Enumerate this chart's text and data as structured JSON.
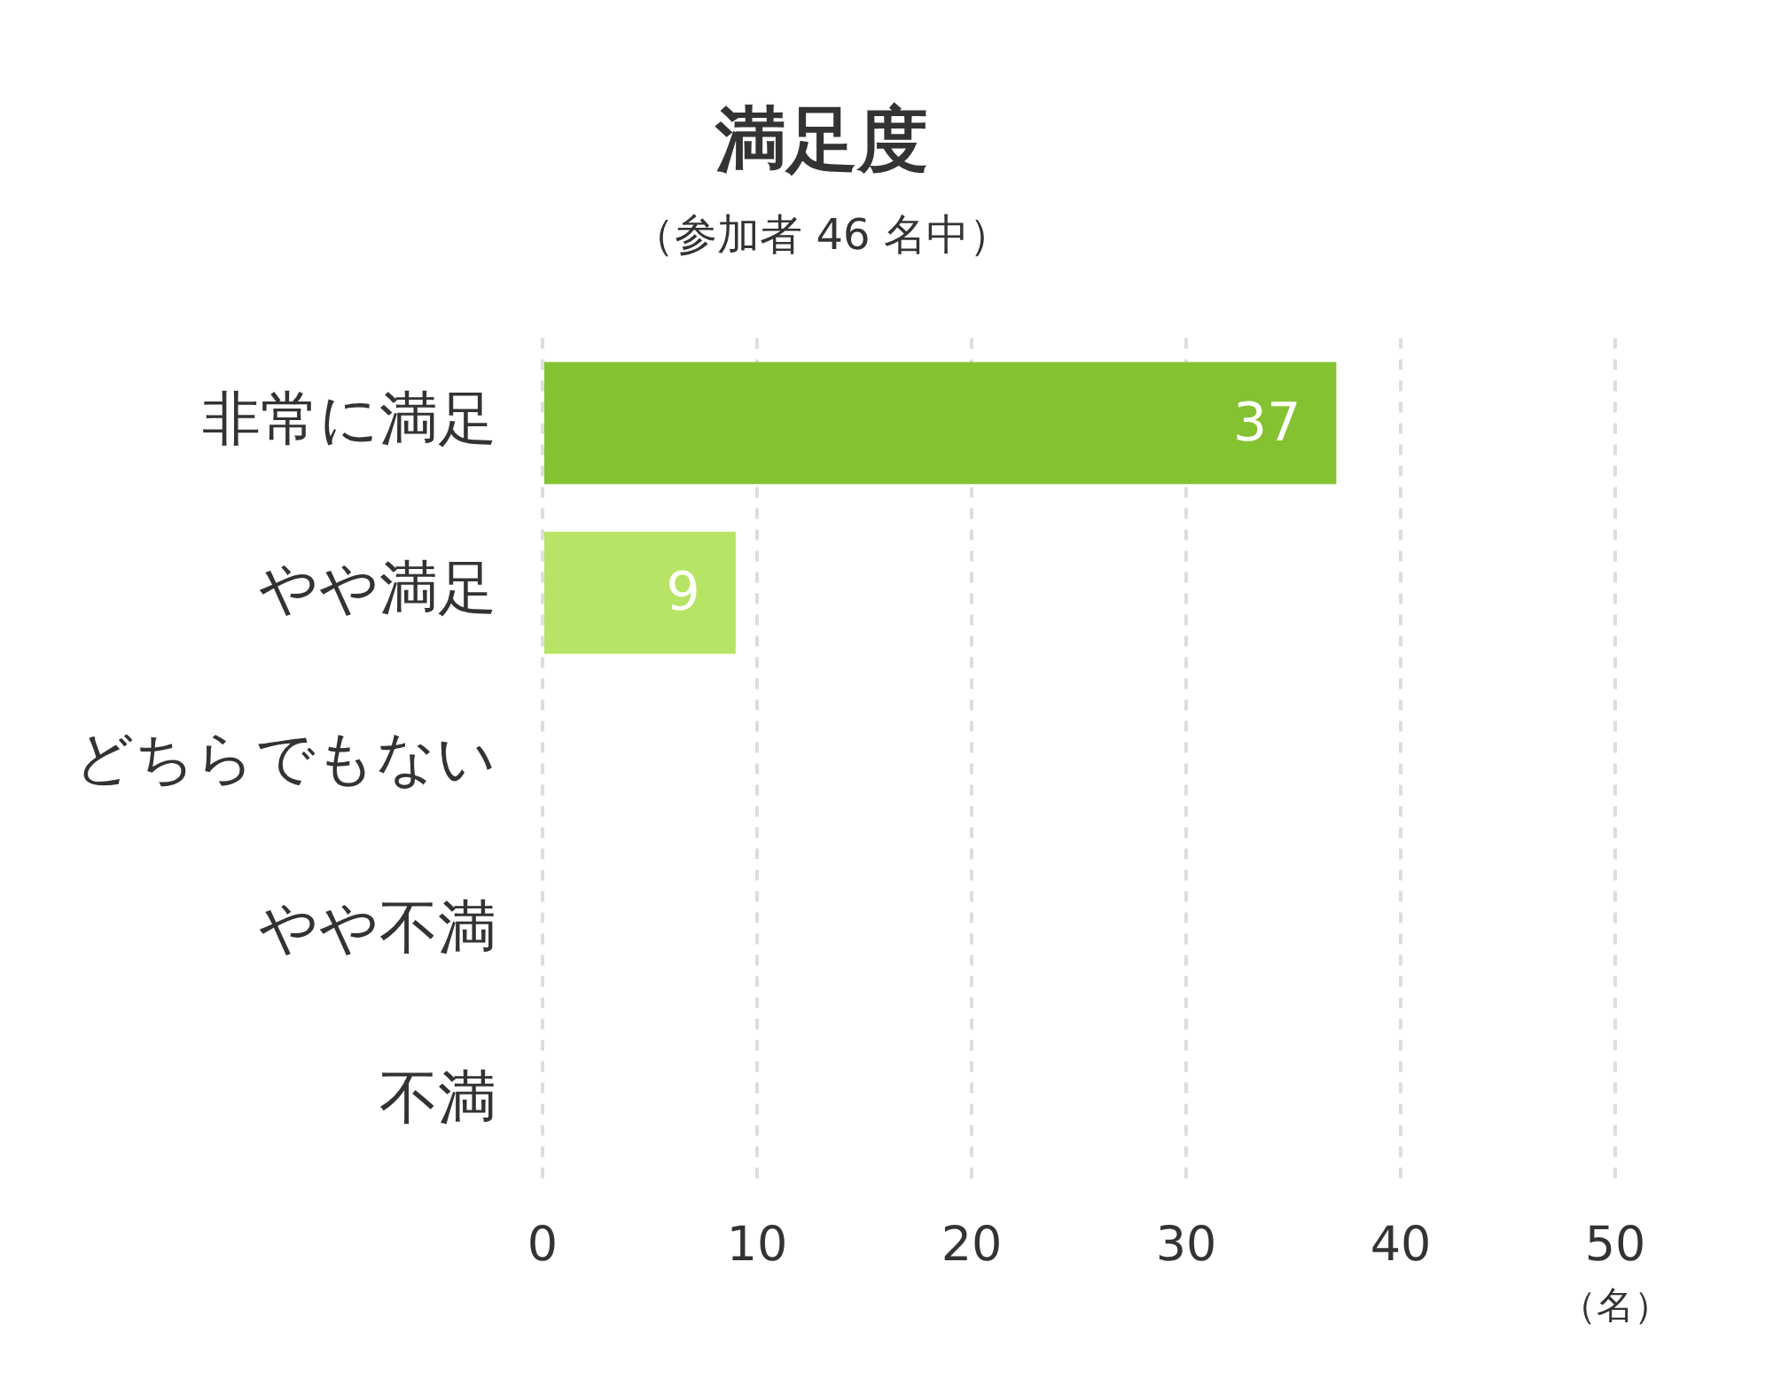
{
  "chart_data": {
    "type": "bar",
    "orientation": "horizontal",
    "title": "満足度",
    "subtitle": "（参加者 46 名中）",
    "xlabel": "（名）",
    "categories": [
      "非常に満足",
      "やや満足",
      "どちらでもない",
      "やや不満",
      "不満"
    ],
    "values": [
      37,
      9,
      0,
      0,
      0
    ],
    "colors": [
      "#84c232",
      "#b7e464",
      null,
      null,
      null
    ],
    "value_labels": [
      "37",
      "9",
      null,
      null,
      null
    ],
    "xlim": [
      0,
      50
    ],
    "xticks": [
      0,
      10,
      20,
      30,
      40,
      50
    ],
    "grid": "x",
    "legend": false
  }
}
